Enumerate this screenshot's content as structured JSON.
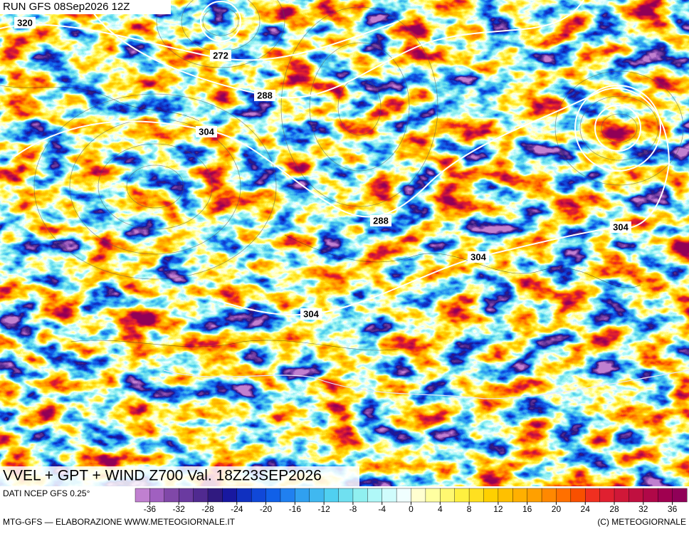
{
  "header": {
    "run": "RUN GFS 08Sep2026 12Z"
  },
  "map": {
    "contour_labels": [
      320,
      272,
      288,
      304,
      288,
      304,
      304,
      304
    ],
    "title": "VVEL + GPT + WIND Z700 Val. 18Z23SEP2026"
  },
  "legend": {
    "source": "DATI NCEP GFS 0.25°",
    "colors": [
      "#c080d0",
      "#a060c0",
      "#8048a8",
      "#6a3aa0",
      "#502a90",
      "#301a80",
      "#1818a0",
      "#1030c0",
      "#1048d8",
      "#1060e8",
      "#2080f0",
      "#30a0f0",
      "#40b8f0",
      "#50d0f0",
      "#70e0f0",
      "#90f0f0",
      "#b0f8f8",
      "#d0fcfc",
      "#f0ffff",
      "#ffffd0",
      "#ffffa0",
      "#fff870",
      "#fff040",
      "#ffe020",
      "#ffd000",
      "#ffc000",
      "#ffb000",
      "#ffa000",
      "#ff8800",
      "#ff7000",
      "#f85000",
      "#f03020",
      "#e02030",
      "#d01838",
      "#c01040",
      "#b00848",
      "#a00050",
      "#900058"
    ],
    "ticks": [
      -36,
      -32,
      -28,
      -24,
      -20,
      -16,
      -12,
      -8,
      -4,
      0,
      4,
      8,
      12,
      16,
      20,
      24,
      28,
      32,
      36
    ]
  },
  "footer": {
    "left": "MTG-GFS — ELABORAZIONE WWW.METEOGIORNALE.IT",
    "right": "(C) METEOGIORNALE"
  }
}
